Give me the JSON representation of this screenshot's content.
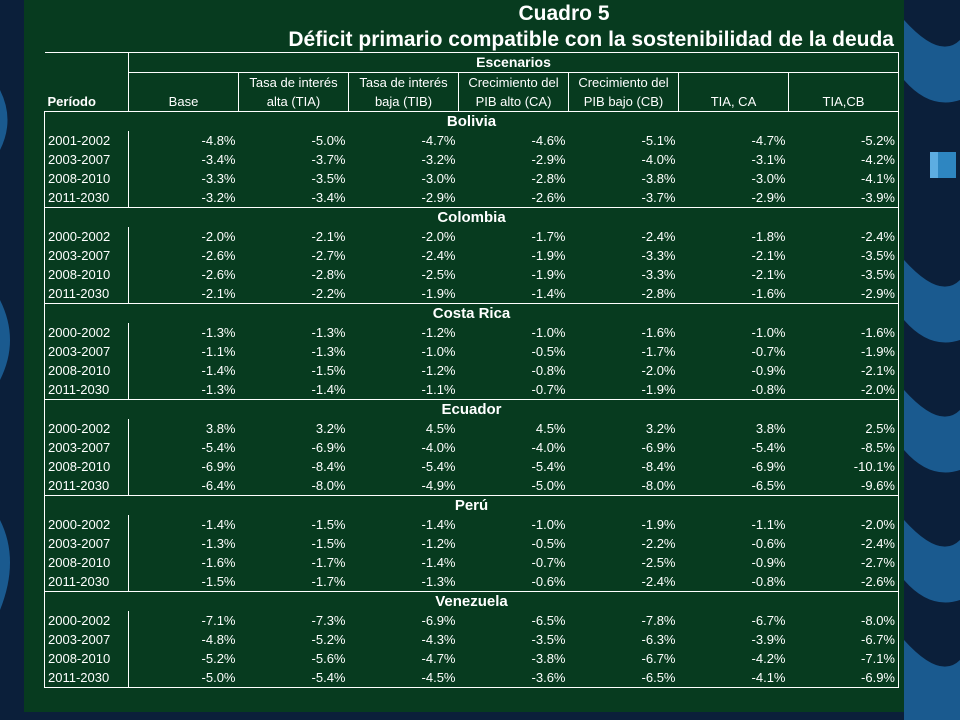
{
  "slide": {
    "title_line1": "Cuadro 5",
    "title_line2": "Déficit primario compatible con la sostenibilidad de la deuda",
    "brand_color_panel": "#073b1f",
    "brand_color_bg": "#0b1f3a",
    "accent_color_waves": "#1a5a8f"
  },
  "table": {
    "group_header": "Escenarios",
    "period_header": "Período",
    "columns": [
      [
        "",
        "Base"
      ],
      [
        "Tasa de interés",
        "alta (TIA)"
      ],
      [
        "Tasa de interés",
        "baja (TIB)"
      ],
      [
        "Crecimiento del",
        "PIB alto (CA)"
      ],
      [
        "Crecimiento del",
        "PIB bajo (CB)"
      ],
      [
        "",
        "TIA, CA"
      ],
      [
        "",
        "TIA,CB"
      ]
    ],
    "sections": [
      {
        "country": "Bolivia",
        "rows": [
          {
            "period": "2001-2002",
            "values": [
              "-4.8%",
              "-5.0%",
              "-4.7%",
              "-4.6%",
              "-5.1%",
              "-4.7%",
              "-5.2%"
            ]
          },
          {
            "period": "2003-2007",
            "values": [
              "-3.4%",
              "-3.7%",
              "-3.2%",
              "-2.9%",
              "-4.0%",
              "-3.1%",
              "-4.2%"
            ]
          },
          {
            "period": "2008-2010",
            "values": [
              "-3.3%",
              "-3.5%",
              "-3.0%",
              "-2.8%",
              "-3.8%",
              "-3.0%",
              "-4.1%"
            ]
          },
          {
            "period": "2011-2030",
            "values": [
              "-3.2%",
              "-3.4%",
              "-2.9%",
              "-2.6%",
              "-3.7%",
              "-2.9%",
              "-3.9%"
            ]
          }
        ]
      },
      {
        "country": "Colombia",
        "rows": [
          {
            "period": "2000-2002",
            "values": [
              "-2.0%",
              "-2.1%",
              "-2.0%",
              "-1.7%",
              "-2.4%",
              "-1.8%",
              "-2.4%"
            ]
          },
          {
            "period": "2003-2007",
            "values": [
              "-2.6%",
              "-2.7%",
              "-2.4%",
              "-1.9%",
              "-3.3%",
              "-2.1%",
              "-3.5%"
            ]
          },
          {
            "period": "2008-2010",
            "values": [
              "-2.6%",
              "-2.8%",
              "-2.5%",
              "-1.9%",
              "-3.3%",
              "-2.1%",
              "-3.5%"
            ]
          },
          {
            "period": "2011-2030",
            "values": [
              "-2.1%",
              "-2.2%",
              "-1.9%",
              "-1.4%",
              "-2.8%",
              "-1.6%",
              "-2.9%"
            ]
          }
        ]
      },
      {
        "country": "Costa Rica",
        "rows": [
          {
            "period": "2000-2002",
            "values": [
              "-1.3%",
              "-1.3%",
              "-1.2%",
              "-1.0%",
              "-1.6%",
              "-1.0%",
              "-1.6%"
            ]
          },
          {
            "period": "2003-2007",
            "values": [
              "-1.1%",
              "-1.3%",
              "-1.0%",
              "-0.5%",
              "-1.7%",
              "-0.7%",
              "-1.9%"
            ]
          },
          {
            "period": "2008-2010",
            "values": [
              "-1.4%",
              "-1.5%",
              "-1.2%",
              "-0.8%",
              "-2.0%",
              "-0.9%",
              "-2.1%"
            ]
          },
          {
            "period": "2011-2030",
            "values": [
              "-1.3%",
              "-1.4%",
              "-1.1%",
              "-0.7%",
              "-1.9%",
              "-0.8%",
              "-2.0%"
            ]
          }
        ]
      },
      {
        "country": "Ecuador",
        "rows": [
          {
            "period": "2000-2002",
            "values": [
              "3.8%",
              "3.2%",
              "4.5%",
              "4.5%",
              "3.2%",
              "3.8%",
              "2.5%"
            ]
          },
          {
            "period": "2003-2007",
            "values": [
              "-5.4%",
              "-6.9%",
              "-4.0%",
              "-4.0%",
              "-6.9%",
              "-5.4%",
              "-8.5%"
            ]
          },
          {
            "period": "2008-2010",
            "values": [
              "-6.9%",
              "-8.4%",
              "-5.4%",
              "-5.4%",
              "-8.4%",
              "-6.9%",
              "-10.1%"
            ]
          },
          {
            "period": "2011-2030",
            "values": [
              "-6.4%",
              "-8.0%",
              "-4.9%",
              "-5.0%",
              "-8.0%",
              "-6.5%",
              "-9.6%"
            ]
          }
        ]
      },
      {
        "country": "Perú",
        "rows": [
          {
            "period": "2000-2002",
            "values": [
              "-1.4%",
              "-1.5%",
              "-1.4%",
              "-1.0%",
              "-1.9%",
              "-1.1%",
              "-2.0%"
            ]
          },
          {
            "period": "2003-2007",
            "values": [
              "-1.3%",
              "-1.5%",
              "-1.2%",
              "-0.5%",
              "-2.2%",
              "-0.6%",
              "-2.4%"
            ]
          },
          {
            "period": "2008-2010",
            "values": [
              "-1.6%",
              "-1.7%",
              "-1.4%",
              "-0.7%",
              "-2.5%",
              "-0.9%",
              "-2.7%"
            ]
          },
          {
            "period": "2011-2030",
            "values": [
              "-1.5%",
              "-1.7%",
              "-1.3%",
              "-0.6%",
              "-2.4%",
              "-0.8%",
              "-2.6%"
            ]
          }
        ]
      },
      {
        "country": "Venezuela",
        "rows": [
          {
            "period": "2000-2002",
            "values": [
              "-7.1%",
              "-7.3%",
              "-6.9%",
              "-6.5%",
              "-7.8%",
              "-6.7%",
              "-8.0%"
            ]
          },
          {
            "period": "2003-2007",
            "values": [
              "-4.8%",
              "-5.2%",
              "-4.3%",
              "-3.5%",
              "-6.3%",
              "-3.9%",
              "-6.7%"
            ]
          },
          {
            "period": "2008-2010",
            "values": [
              "-5.2%",
              "-5.6%",
              "-4.7%",
              "-3.8%",
              "-6.7%",
              "-4.2%",
              "-7.1%"
            ]
          },
          {
            "period": "2011-2030",
            "values": [
              "-5.0%",
              "-5.4%",
              "-4.5%",
              "-3.6%",
              "-6.5%",
              "-4.1%",
              "-6.9%"
            ]
          }
        ]
      }
    ]
  }
}
